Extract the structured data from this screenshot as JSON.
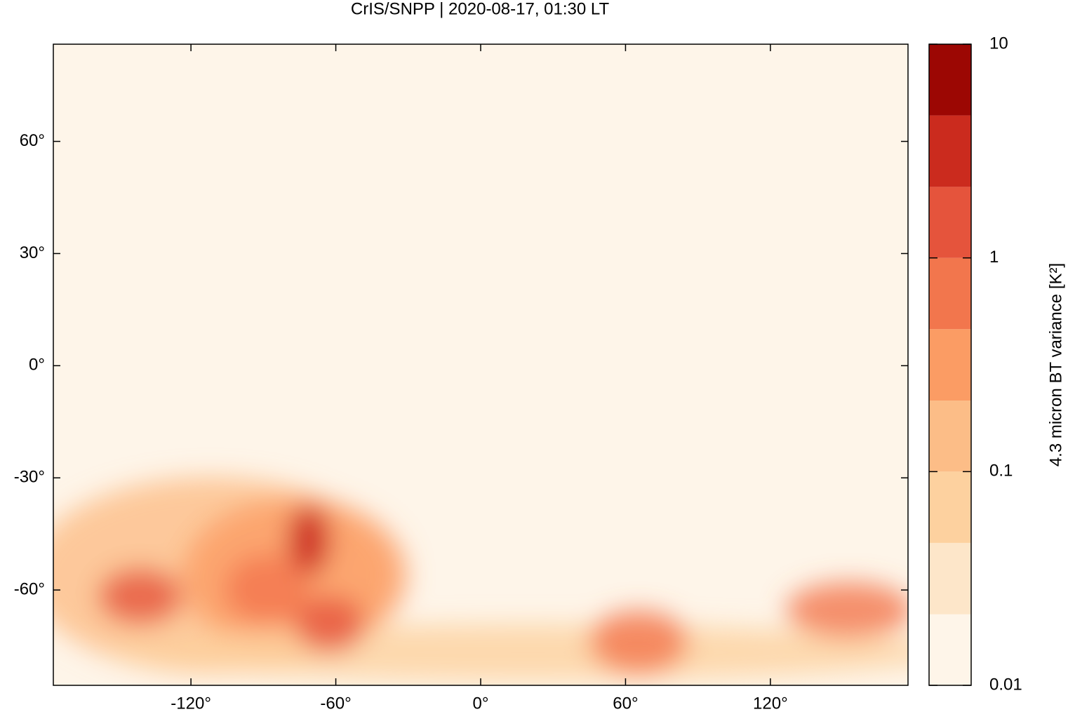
{
  "chart_data": {
    "type": "heatmap",
    "title": "CrIS/SNPP | 2020-08-17, 01:30 LT",
    "xlim": [
      -177,
      177
    ],
    "ylim": [
      -85.5,
      86
    ],
    "xticks": [
      {
        "value": -120,
        "label": "-120°"
      },
      {
        "value": -60,
        "label": "-60°"
      },
      {
        "value": 0,
        "label": "0°"
      },
      {
        "value": 60,
        "label": "60°"
      },
      {
        "value": 120,
        "label": "120°"
      }
    ],
    "yticks": [
      {
        "value": -60,
        "label": "-60°"
      },
      {
        "value": -30,
        "label": "-30°"
      },
      {
        "value": 0,
        "label": "0°"
      },
      {
        "value": 30,
        "label": "30°"
      },
      {
        "value": 60,
        "label": "60°"
      }
    ],
    "colorbar": {
      "label": "4.3 micron BT variance [K²]",
      "log": true,
      "lim": [
        0.01,
        10
      ],
      "ticks": [
        0.01,
        0.1,
        1,
        10
      ],
      "levels": [
        0.01,
        0.0215,
        0.0464,
        0.1,
        0.215,
        0.464,
        1,
        2.15,
        4.64,
        10
      ],
      "colors": [
        "#fef5e9",
        "#fde6c9",
        "#fdd19f",
        "#fcbd87",
        "#fb9c64",
        "#f2764d",
        "#e5543c",
        "#cb2b1e",
        "#9c0703"
      ]
    }
  }
}
